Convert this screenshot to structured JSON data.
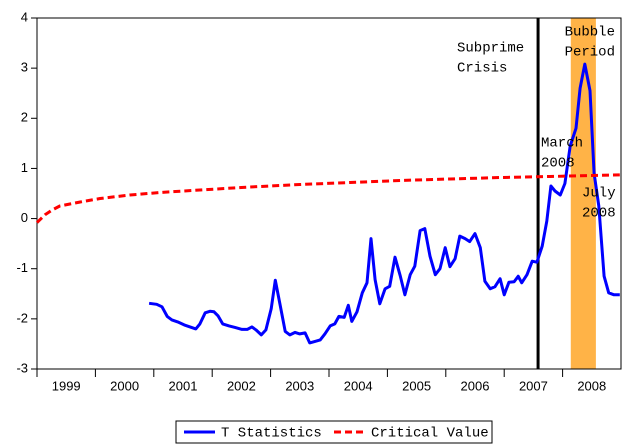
{
  "chart_data": {
    "type": "line",
    "series": [
      {
        "name": "T Statistics",
        "color": "#0000ff",
        "dash": false,
        "x": [
          2000.92,
          2001.05,
          2001.14,
          2001.23,
          2001.31,
          2001.41,
          2001.52,
          2001.62,
          2001.72,
          2001.79,
          2001.88,
          2001.96,
          2002.03,
          2002.1,
          2002.18,
          2002.29,
          2002.39,
          2002.51,
          2002.6,
          2002.68,
          2002.75,
          2002.84,
          2002.92,
          2003.01,
          2003.08,
          2003.16,
          2003.25,
          2003.33,
          2003.42,
          2003.5,
          2003.59,
          2003.67,
          2003.76,
          2003.85,
          2003.93,
          2004.02,
          2004.1,
          2004.17,
          2004.26,
          2004.33,
          2004.39,
          2004.48,
          2004.57,
          2004.65,
          2004.72,
          2004.79,
          2004.87,
          2004.96,
          2005.04,
          2005.13,
          2005.22,
          2005.3,
          2005.39,
          2005.47,
          2005.56,
          2005.64,
          2005.73,
          2005.82,
          2005.9,
          2005.99,
          2006.07,
          2006.16,
          2006.24,
          2006.33,
          2006.41,
          2006.5,
          2006.59,
          2006.67,
          2006.76,
          2006.84,
          2006.93,
          2007.0,
          2007.08,
          2007.17,
          2007.24,
          2007.3,
          2007.39,
          2007.48,
          2007.56,
          2007.65,
          2007.73,
          2007.8,
          2007.87,
          2007.96,
          2008.04,
          2008.13,
          2008.23,
          2008.3,
          2008.38,
          2008.47,
          2008.54,
          2008.62,
          2008.71,
          2008.79,
          2008.88,
          2008.98
        ],
        "values": [
          -1.69,
          -1.71,
          -1.76,
          -1.95,
          -2.02,
          -2.06,
          -2.12,
          -2.16,
          -2.2,
          -2.1,
          -1.88,
          -1.85,
          -1.86,
          -1.94,
          -2.1,
          -2.14,
          -2.17,
          -2.21,
          -2.21,
          -2.16,
          -2.22,
          -2.32,
          -2.22,
          -1.8,
          -1.23,
          -1.7,
          -2.25,
          -2.32,
          -2.27,
          -2.3,
          -2.28,
          -2.48,
          -2.45,
          -2.42,
          -2.3,
          -2.14,
          -2.1,
          -1.95,
          -1.97,
          -1.73,
          -2.05,
          -1.86,
          -1.48,
          -1.28,
          -0.4,
          -1.22,
          -1.7,
          -1.4,
          -1.35,
          -0.77,
          -1.14,
          -1.52,
          -1.12,
          -0.95,
          -0.24,
          -0.2,
          -0.75,
          -1.12,
          -1.0,
          -0.58,
          -0.96,
          -0.8,
          -0.35,
          -0.4,
          -0.46,
          -0.3,
          -0.58,
          -1.25,
          -1.4,
          -1.36,
          -1.2,
          -1.52,
          -1.27,
          -1.26,
          -1.15,
          -1.28,
          -1.12,
          -0.85,
          -0.87,
          -0.55,
          -0.05,
          0.65,
          0.55,
          0.47,
          0.7,
          1.45,
          1.8,
          2.6,
          3.08,
          2.55,
          0.9,
          0.25,
          -1.15,
          -1.48,
          -1.52,
          -1.52
        ]
      },
      {
        "name": "Critical Value",
        "color": "#ff0000",
        "dash": true,
        "x": [
          1999.0,
          1999.14,
          1999.26,
          1999.39,
          1999.74,
          2000.08,
          2000.59,
          2001.11,
          2001.79,
          2002.65,
          2003.5,
          2004.36,
          2005.22,
          2006.07,
          2006.93,
          2007.78,
          2008.98
        ],
        "values": [
          -0.08,
          0.08,
          0.17,
          0.25,
          0.33,
          0.4,
          0.47,
          0.52,
          0.57,
          0.63,
          0.68,
          0.72,
          0.76,
          0.79,
          0.82,
          0.84,
          0.87
        ]
      }
    ],
    "xlim": [
      1999,
      2009
    ],
    "ylim": [
      -3,
      4
    ],
    "xticks": [
      {
        "value": 1999,
        "label": "1999"
      },
      {
        "value": 2000,
        "label": "2000"
      },
      {
        "value": 2001,
        "label": "2001"
      },
      {
        "value": 2002,
        "label": "2002"
      },
      {
        "value": 2003,
        "label": "2003"
      },
      {
        "value": 2004,
        "label": "2004"
      },
      {
        "value": 2005,
        "label": "2005"
      },
      {
        "value": 2006,
        "label": "2006"
      },
      {
        "value": 2007,
        "label": "2007"
      },
      {
        "value": 2008,
        "label": "2008"
      }
    ],
    "yticks": [
      -3,
      -2,
      -1,
      0,
      1,
      2,
      3,
      4
    ],
    "vline": {
      "x": 2007.58,
      "color": "#000000"
    },
    "shaded": {
      "x": [
        2008.14,
        2008.57
      ],
      "color": "#ffb347"
    },
    "annotations": [
      {
        "lines": [
          "Subprime",
          "Crisis"
        ]
      },
      {
        "lines": [
          "Bubble",
          "Period"
        ]
      },
      {
        "lines": [
          "March",
          "2008"
        ]
      },
      {
        "lines": [
          "July",
          "2008"
        ]
      }
    ],
    "legend": "bottom"
  }
}
